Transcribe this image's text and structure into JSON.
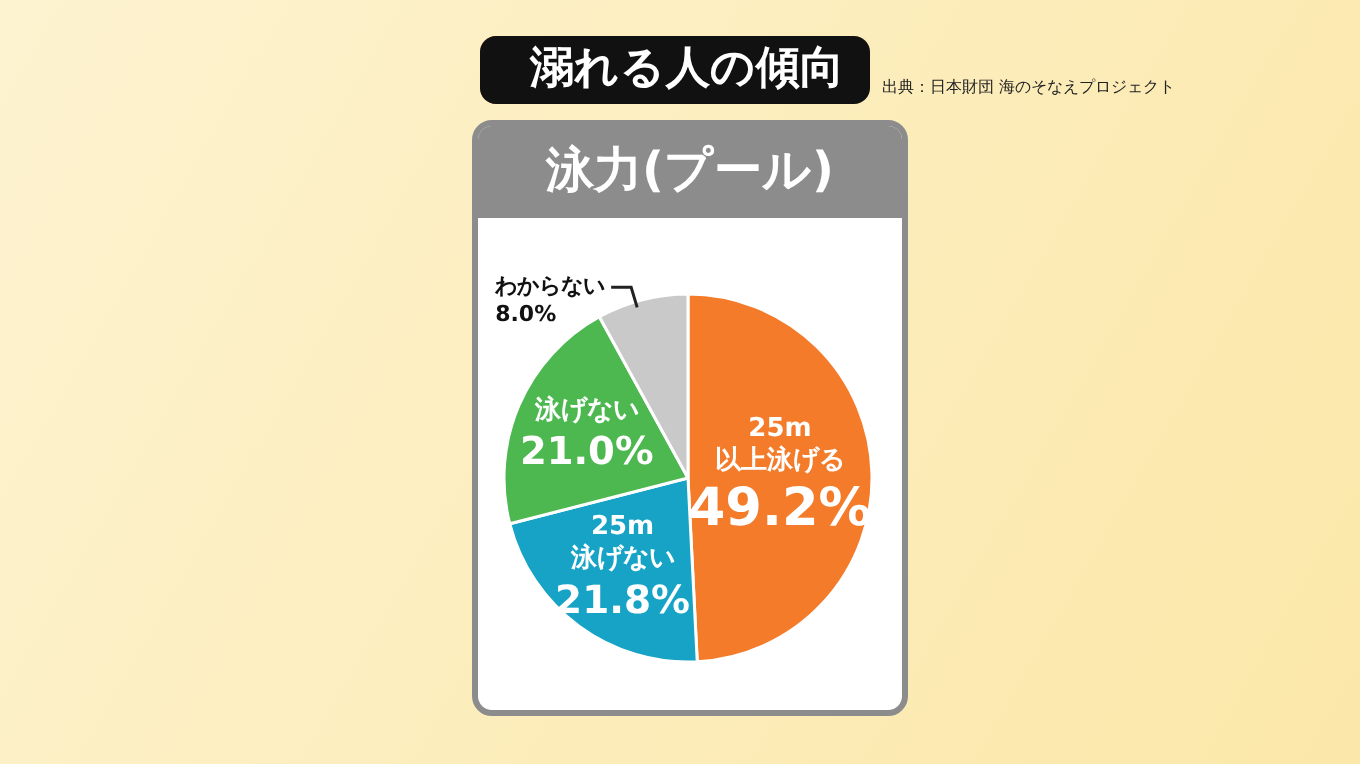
{
  "chart_data": {
    "type": "pie",
    "title": "溺れる人の傾向",
    "subtitle": "泳力(プール)",
    "annotations": [
      "出典：日本財団 海のそなえプロジェクト"
    ],
    "categories": [
      "25m以上泳げる",
      "25m泳げない",
      "泳げない",
      "わからない"
    ],
    "values": [
      49.2,
      21.8,
      21.0,
      8.0
    ],
    "value_labels": [
      "49.2%",
      "21.8%",
      "21.0%",
      "8.0%"
    ],
    "colors": [
      "#f47b2a",
      "#16a3c6",
      "#4cb84f",
      "#c9c9c9"
    ]
  }
}
